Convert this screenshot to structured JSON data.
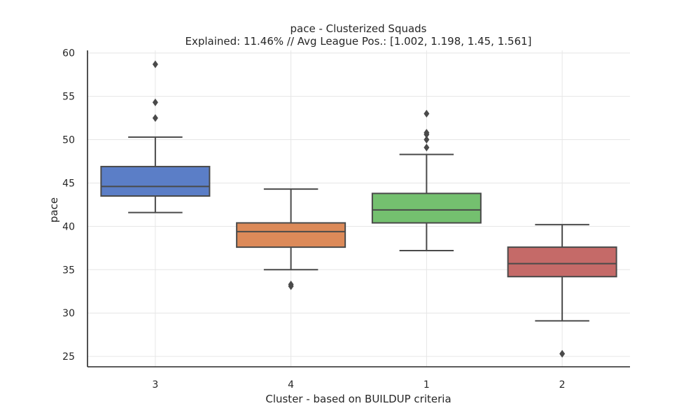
{
  "chart_data": {
    "type": "box",
    "title": "pace - Clusterized Squads",
    "subtitle": "Explained: 11.46% // Avg League Pos.: [1.002, 1.198, 1.45, 1.561]",
    "xlabel": "Cluster - based on BUILDUP criteria",
    "ylabel": "pace",
    "ylim": [
      23.8,
      60.3
    ],
    "yticks": [
      25,
      30,
      35,
      40,
      45,
      50,
      55,
      60
    ],
    "grid": true,
    "categories": [
      "3",
      "4",
      "1",
      "2"
    ],
    "boxes": [
      {
        "category": "3",
        "color": "#5b7ec7",
        "whisker_low": 41.6,
        "q1": 43.5,
        "median": 44.6,
        "q3": 46.9,
        "whisker_high": 50.3,
        "outliers": [
          52.5,
          54.3,
          58.7
        ]
      },
      {
        "category": "4",
        "color": "#dc8a59",
        "whisker_low": 35.0,
        "q1": 37.6,
        "median": 39.4,
        "q3": 40.4,
        "whisker_high": 44.3,
        "outliers": [
          33.1,
          33.3
        ]
      },
      {
        "category": "1",
        "color": "#74c06f",
        "whisker_low": 37.2,
        "q1": 40.4,
        "median": 41.9,
        "q3": 43.8,
        "whisker_high": 48.3,
        "outliers": [
          49.1,
          50.0,
          50.6,
          50.8,
          53.0
        ]
      },
      {
        "category": "2",
        "color": "#c56a68",
        "whisker_low": 29.1,
        "q1": 34.2,
        "median": 35.7,
        "q3": 37.6,
        "whisker_high": 40.2,
        "outliers": [
          25.3
        ]
      }
    ]
  }
}
